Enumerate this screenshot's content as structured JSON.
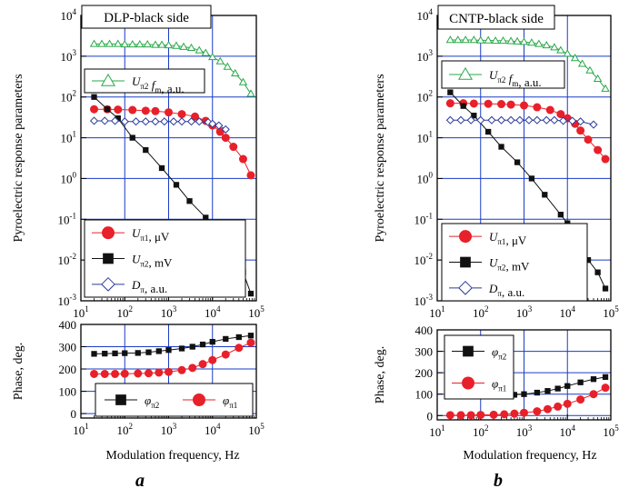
{
  "colors": {
    "red": "#e8202a",
    "black": "#111111",
    "green": "#2aa84a",
    "blue": "#2a3a9a",
    "grid": "#1a3cc4"
  },
  "xlabel": "Modulation frequency, Hz",
  "chart_data": [
    {
      "id": "a-top",
      "type": "line",
      "title": "DLP-black side",
      "ylabel": "Pyroelectric response parameters",
      "xscale": "log",
      "yscale": "log",
      "xlim": [
        10,
        100000
      ],
      "ylim": [
        0.001,
        10000
      ],
      "grid": true,
      "xticks": [
        "10^1",
        "10^2",
        "10^3",
        "10^4",
        "10^5"
      ],
      "yticks": [
        "10^-3",
        "10^-2",
        "10^-1",
        "10^0",
        "10^1",
        "10^2",
        "10^3",
        "10^4"
      ],
      "series": [
        {
          "name": "U_π2 f_m, a.u.",
          "marker": "triangle",
          "color": "green",
          "x": [
            20,
            30,
            45,
            70,
            100,
            150,
            220,
            330,
            500,
            700,
            1000,
            1500,
            2200,
            3300,
            5000,
            7000,
            10000,
            15000,
            22000,
            33000,
            50000,
            75000
          ],
          "y": [
            2000,
            2000,
            2000,
            2000,
            1950,
            1950,
            1950,
            1950,
            1900,
            1900,
            1850,
            1800,
            1700,
            1600,
            1400,
            1200,
            950,
            750,
            550,
            380,
            230,
            120
          ]
        },
        {
          "name": "U_π1, μV",
          "marker": "circle",
          "color": "red",
          "x": [
            20,
            40,
            70,
            150,
            300,
            500,
            1000,
            2000,
            4000,
            7000,
            10000,
            15000,
            20000,
            30000,
            50000,
            75000
          ],
          "y": [
            50,
            50,
            49,
            48,
            46,
            45,
            42,
            38,
            33,
            26,
            20,
            14,
            10,
            6,
            3,
            1.2
          ]
        },
        {
          "name": "U_π2, mV",
          "marker": "square",
          "color": "black",
          "x": [
            20,
            40,
            70,
            150,
            300,
            700,
            1500,
            3000,
            7000,
            10000,
            15000,
            20000,
            30000,
            50000,
            75000
          ],
          "y": [
            100,
            50,
            30,
            10,
            5,
            1.8,
            0.7,
            0.28,
            0.11,
            0.08,
            0.045,
            0.02,
            0.012,
            0.005,
            0.0015
          ]
        },
        {
          "name": "D_π, a.u.",
          "marker": "diamond",
          "color": "blue",
          "x": [
            20,
            35,
            60,
            100,
            180,
            300,
            500,
            800,
            1300,
            2000,
            3300,
            5000,
            8000,
            10000,
            14000,
            20000
          ],
          "y": [
            26,
            26,
            26,
            25,
            25,
            25,
            25,
            25,
            25,
            25,
            25,
            25,
            24,
            22,
            20,
            16
          ]
        }
      ]
    },
    {
      "id": "a-bottom",
      "type": "line",
      "ylabel": "Phase, deg.",
      "xscale": "log",
      "xlim": [
        10,
        100000
      ],
      "ylim": [
        -20,
        400
      ],
      "grid": true,
      "xticks": [
        "10^1",
        "10^2",
        "10^3",
        "10^4",
        "10^5"
      ],
      "yticks": [
        "0",
        "100",
        "200",
        "300",
        "400"
      ],
      "series": [
        {
          "name": "φ_π2",
          "marker": "square",
          "color": "black",
          "x": [
            20,
            35,
            60,
            100,
            200,
            350,
            600,
            1000,
            2000,
            3500,
            6000,
            10000,
            20000,
            40000,
            75000
          ],
          "y": [
            268,
            269,
            270,
            271,
            272,
            275,
            280,
            285,
            292,
            300,
            310,
            322,
            335,
            343,
            350
          ]
        },
        {
          "name": "φ_π1",
          "marker": "circle",
          "color": "red",
          "x": [
            20,
            35,
            60,
            100,
            200,
            350,
            600,
            1000,
            2000,
            3500,
            6000,
            10000,
            20000,
            40000,
            75000
          ],
          "y": [
            178,
            178,
            178,
            179,
            180,
            181,
            184,
            187,
            195,
            205,
            222,
            240,
            265,
            295,
            318
          ]
        }
      ]
    },
    {
      "id": "b-top",
      "type": "line",
      "title": "CNTP-black side",
      "ylabel": "Pyroelectric response parameters",
      "xscale": "log",
      "yscale": "log",
      "xlim": [
        10,
        100000
      ],
      "ylim": [
        0.001,
        10000
      ],
      "grid": true,
      "xticks": [
        "10^1",
        "10^2",
        "10^3",
        "10^4",
        "10^5"
      ],
      "yticks": [
        "10^-3",
        "10^-2",
        "10^-1",
        "10^0",
        "10^1",
        "10^2",
        "10^3",
        "10^4"
      ],
      "series": [
        {
          "name": "U_π2 f_m, a.u.",
          "marker": "triangle",
          "color": "green",
          "x": [
            20,
            30,
            45,
            70,
            100,
            150,
            220,
            330,
            500,
            700,
            1000,
            1500,
            2200,
            3300,
            5000,
            7000,
            10000,
            15000,
            22000,
            33000,
            50000,
            75000
          ],
          "y": [
            2500,
            2500,
            2500,
            2500,
            2450,
            2450,
            2400,
            2400,
            2350,
            2300,
            2250,
            2150,
            2000,
            1850,
            1650,
            1400,
            1150,
            900,
            650,
            450,
            280,
            160
          ]
        },
        {
          "name": "U_π1, μV",
          "marker": "circle",
          "color": "red",
          "x": [
            20,
            40,
            70,
            150,
            300,
            500,
            1000,
            2000,
            4000,
            7000,
            10000,
            15000,
            20000,
            30000,
            50000,
            75000
          ],
          "y": [
            70,
            70,
            69,
            68,
            67,
            65,
            62,
            56,
            48,
            38,
            30,
            22,
            15,
            9,
            5,
            3
          ]
        },
        {
          "name": "U_π2, mV",
          "marker": "square",
          "color": "black",
          "x": [
            20,
            40,
            70,
            150,
            300,
            700,
            1500,
            3000,
            7000,
            10000,
            15000,
            20000,
            30000,
            50000,
            75000
          ],
          "y": [
            130,
            60,
            35,
            14,
            6,
            2.5,
            1,
            0.4,
            0.13,
            0.08,
            0.04,
            0.02,
            0.01,
            0.005,
            0.002
          ]
        },
        {
          "name": "D_π, a.u.",
          "marker": "diamond",
          "color": "blue",
          "x": [
            20,
            35,
            60,
            100,
            180,
            300,
            500,
            800,
            1300,
            2000,
            3300,
            5000,
            8000,
            13000,
            20000,
            40000
          ],
          "y": [
            27,
            27,
            27,
            27,
            27,
            27,
            27,
            27,
            27,
            27,
            27,
            27,
            26,
            26,
            25,
            21
          ]
        }
      ]
    },
    {
      "id": "b-bottom",
      "type": "line",
      "ylabel": "Phase, deg.",
      "xscale": "log",
      "xlim": [
        10,
        100000
      ],
      "ylim": [
        -20,
        400
      ],
      "grid": true,
      "xticks": [
        "10^1",
        "10^2",
        "10^3",
        "10^4",
        "10^5"
      ],
      "yticks": [
        "0",
        "100",
        "200",
        "300",
        "400"
      ],
      "series": [
        {
          "name": "φ_π2",
          "marker": "square",
          "color": "black",
          "x": [
            20,
            35,
            60,
            100,
            200,
            350,
            600,
            1000,
            2000,
            3500,
            6000,
            10000,
            20000,
            40000,
            75000
          ],
          "y": [
            90,
            90,
            91,
            91,
            92,
            94,
            97,
            100,
            107,
            115,
            126,
            138,
            155,
            170,
            180
          ]
        },
        {
          "name": "φ_π1",
          "marker": "circle",
          "color": "red",
          "x": [
            20,
            35,
            60,
            100,
            200,
            350,
            600,
            1000,
            2000,
            3500,
            6000,
            10000,
            20000,
            40000,
            75000
          ],
          "y": [
            2,
            2,
            2,
            3,
            4,
            6,
            9,
            13,
            20,
            30,
            42,
            55,
            75,
            100,
            130
          ]
        }
      ]
    }
  ],
  "sublabels": [
    "a",
    "b"
  ]
}
